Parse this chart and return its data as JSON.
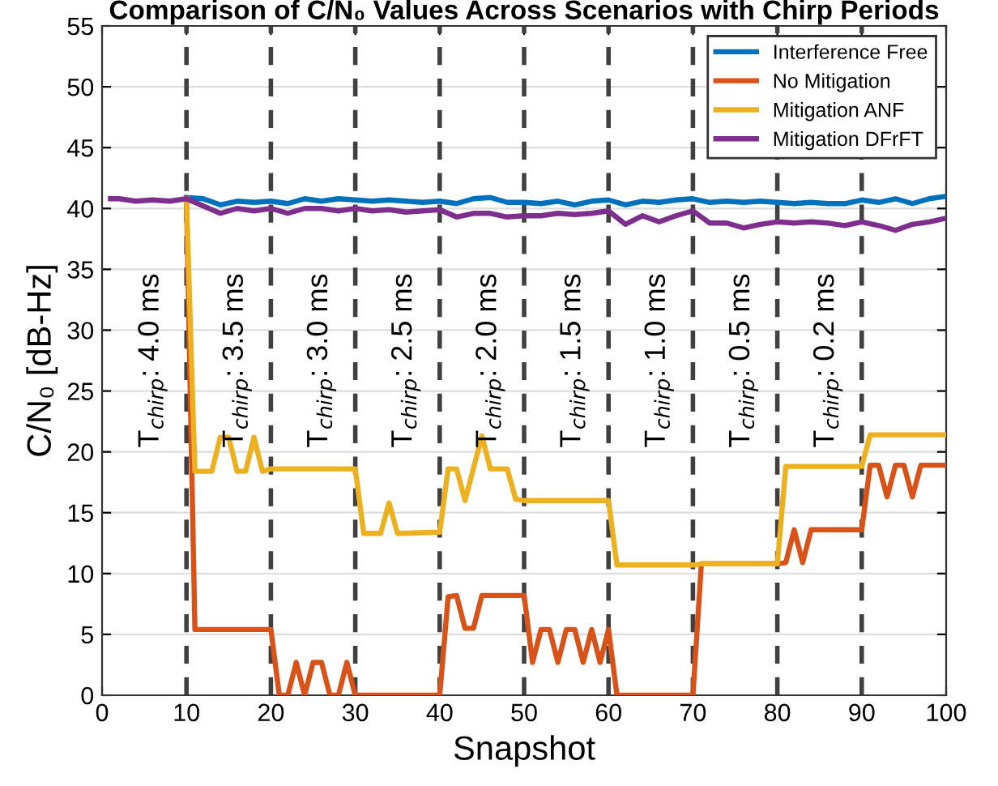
{
  "chart_data": {
    "type": "line",
    "title": "Comparison of C/N₀ Values Across Scenarios with Chirp Periods",
    "xlabel": "Snapshot",
    "ylabel": "C/N₀ [dB-Hz]",
    "xlim": [
      0,
      100
    ],
    "xticks": [
      0,
      10,
      20,
      30,
      40,
      50,
      60,
      70,
      80,
      90,
      100
    ],
    "ylim": [
      0,
      55
    ],
    "yticks": [
      0,
      5,
      10,
      15,
      20,
      25,
      30,
      35,
      40,
      45,
      50,
      55
    ],
    "grid": true,
    "legend": "top right",
    "marker": "none",
    "line_style": "solid",
    "series": [
      {
        "name": "Interference Free",
        "color": "#0072bd",
        "x": [
          10,
          12,
          14,
          16,
          18,
          20,
          22,
          24,
          26,
          28,
          30,
          32,
          34,
          36,
          38,
          40,
          42,
          44,
          46,
          48,
          50,
          52,
          54,
          56,
          58,
          60,
          62,
          64,
          66,
          68,
          70,
          72,
          74,
          76,
          78,
          80,
          82,
          84,
          86,
          88,
          90,
          92,
          94,
          96,
          98,
          100
        ],
        "values": [
          40.9,
          40.8,
          40.3,
          40.6,
          40.5,
          40.6,
          40.4,
          40.8,
          40.6,
          40.8,
          40.7,
          40.6,
          40.7,
          40.6,
          40.5,
          40.6,
          40.4,
          40.8,
          40.9,
          40.5,
          40.5,
          40.4,
          40.6,
          40.3,
          40.6,
          40.7,
          40.3,
          40.6,
          40.5,
          40.7,
          40.8,
          40.5,
          40.6,
          40.5,
          40.6,
          40.5,
          40.4,
          40.5,
          40.4,
          40.4,
          40.7,
          40.5,
          40.8,
          40.4,
          40.8,
          41.0
        ]
      },
      {
        "name": "No Mitigation",
        "color": "#d95319",
        "x": [
          10,
          11,
          20,
          21,
          22,
          23,
          24,
          25,
          26,
          27,
          28,
          29,
          30,
          40,
          41,
          42,
          43,
          44,
          45,
          50,
          51,
          52,
          53,
          54,
          55,
          56,
          57,
          58,
          59,
          60,
          61,
          70,
          71,
          80,
          81,
          82,
          83,
          84,
          90,
          91,
          92,
          93,
          94,
          95,
          96,
          97,
          100
        ],
        "values": [
          40.8,
          5.4,
          5.4,
          0,
          0,
          2.7,
          0,
          2.7,
          2.7,
          0,
          0,
          2.7,
          0,
          0,
          8.1,
          8.2,
          5.5,
          5.5,
          8.2,
          8.2,
          2.7,
          5.4,
          5.4,
          2.7,
          5.4,
          5.4,
          2.7,
          5.4,
          2.7,
          5.4,
          0,
          0,
          10.8,
          10.8,
          10.9,
          13.6,
          10.9,
          13.6,
          13.6,
          18.9,
          18.9,
          16.3,
          18.9,
          18.9,
          16.3,
          18.9,
          18.9
        ]
      },
      {
        "name": "Mitigation ANF",
        "color": "#edb120",
        "x": [
          10,
          11,
          13,
          14,
          15,
          16,
          17,
          18,
          19,
          20,
          30,
          31,
          33,
          34,
          35,
          40,
          41,
          42,
          43,
          45,
          46,
          48,
          49,
          50,
          60,
          61,
          70,
          71,
          80,
          81,
          90,
          91,
          100
        ],
        "values": [
          40.8,
          18.4,
          18.4,
          21.2,
          21.2,
          18.4,
          18.4,
          21.2,
          18.4,
          18.6,
          18.6,
          13.3,
          13.3,
          15.8,
          13.3,
          13.4,
          18.6,
          18.6,
          16.0,
          21.3,
          18.6,
          18.6,
          16.1,
          16.0,
          16.0,
          10.7,
          10.7,
          10.8,
          10.8,
          18.8,
          18.8,
          21.4,
          21.4
        ]
      },
      {
        "name": "Mitigation DFrFT",
        "color": "#7e2f8e",
        "x": [
          1,
          2,
          4,
          6,
          8,
          10,
          12,
          14,
          16,
          18,
          20,
          22,
          24,
          26,
          28,
          30,
          32,
          34,
          36,
          38,
          40,
          42,
          44,
          46,
          48,
          50,
          52,
          54,
          56,
          58,
          60,
          62,
          64,
          66,
          68,
          70,
          72,
          74,
          76,
          78,
          80,
          82,
          84,
          86,
          88,
          90,
          92,
          94,
          96,
          98,
          100
        ],
        "values": [
          40.8,
          40.8,
          40.6,
          40.7,
          40.6,
          40.8,
          40.2,
          39.6,
          40.0,
          39.8,
          40.0,
          39.6,
          40.0,
          40.0,
          39.8,
          40.0,
          39.8,
          39.9,
          39.7,
          39.8,
          39.9,
          39.3,
          39.6,
          39.6,
          39.3,
          39.4,
          39.4,
          39.6,
          39.5,
          39.6,
          39.8,
          38.7,
          39.4,
          38.9,
          39.4,
          39.8,
          38.8,
          38.8,
          38.4,
          38.7,
          38.9,
          38.8,
          38.9,
          38.8,
          38.6,
          38.9,
          38.6,
          38.2,
          38.7,
          38.9,
          39.2
        ]
      }
    ],
    "ref_lines": [
      {
        "axis": "x",
        "value": 10,
        "color": "#404040",
        "line_style": "dashed"
      },
      {
        "axis": "x",
        "value": 20,
        "color": "#404040",
        "line_style": "dashed"
      },
      {
        "axis": "x",
        "value": 30,
        "color": "#404040",
        "line_style": "dashed"
      },
      {
        "axis": "x",
        "value": 40,
        "color": "#404040",
        "line_style": "dashed"
      },
      {
        "axis": "x",
        "value": 50,
        "color": "#404040",
        "line_style": "dashed"
      },
      {
        "axis": "x",
        "value": 60,
        "color": "#404040",
        "line_style": "dashed"
      },
      {
        "axis": "x",
        "value": 70,
        "color": "#404040",
        "line_style": "dashed"
      },
      {
        "axis": "x",
        "value": 80,
        "color": "#404040",
        "line_style": "dashed"
      },
      {
        "axis": "x",
        "value": 90,
        "color": "#404040",
        "line_style": "dashed"
      }
    ],
    "annotations": [
      "T$_{chirp}$: 4.0 ms",
      "T$_{chirp}$: 3.5 ms",
      "T$_{chirp}$: 3.0 ms",
      "T$_{chirp}$: 2.5 ms",
      "T$_{chirp}$: 2.0 ms",
      "T$_{chirp}$: 1.5 ms",
      "T$_{chirp}$: 1.0 ms",
      "T$_{chirp}$: 0.5 ms",
      "T$_{chirp}$: 0.2 ms"
    ]
  }
}
